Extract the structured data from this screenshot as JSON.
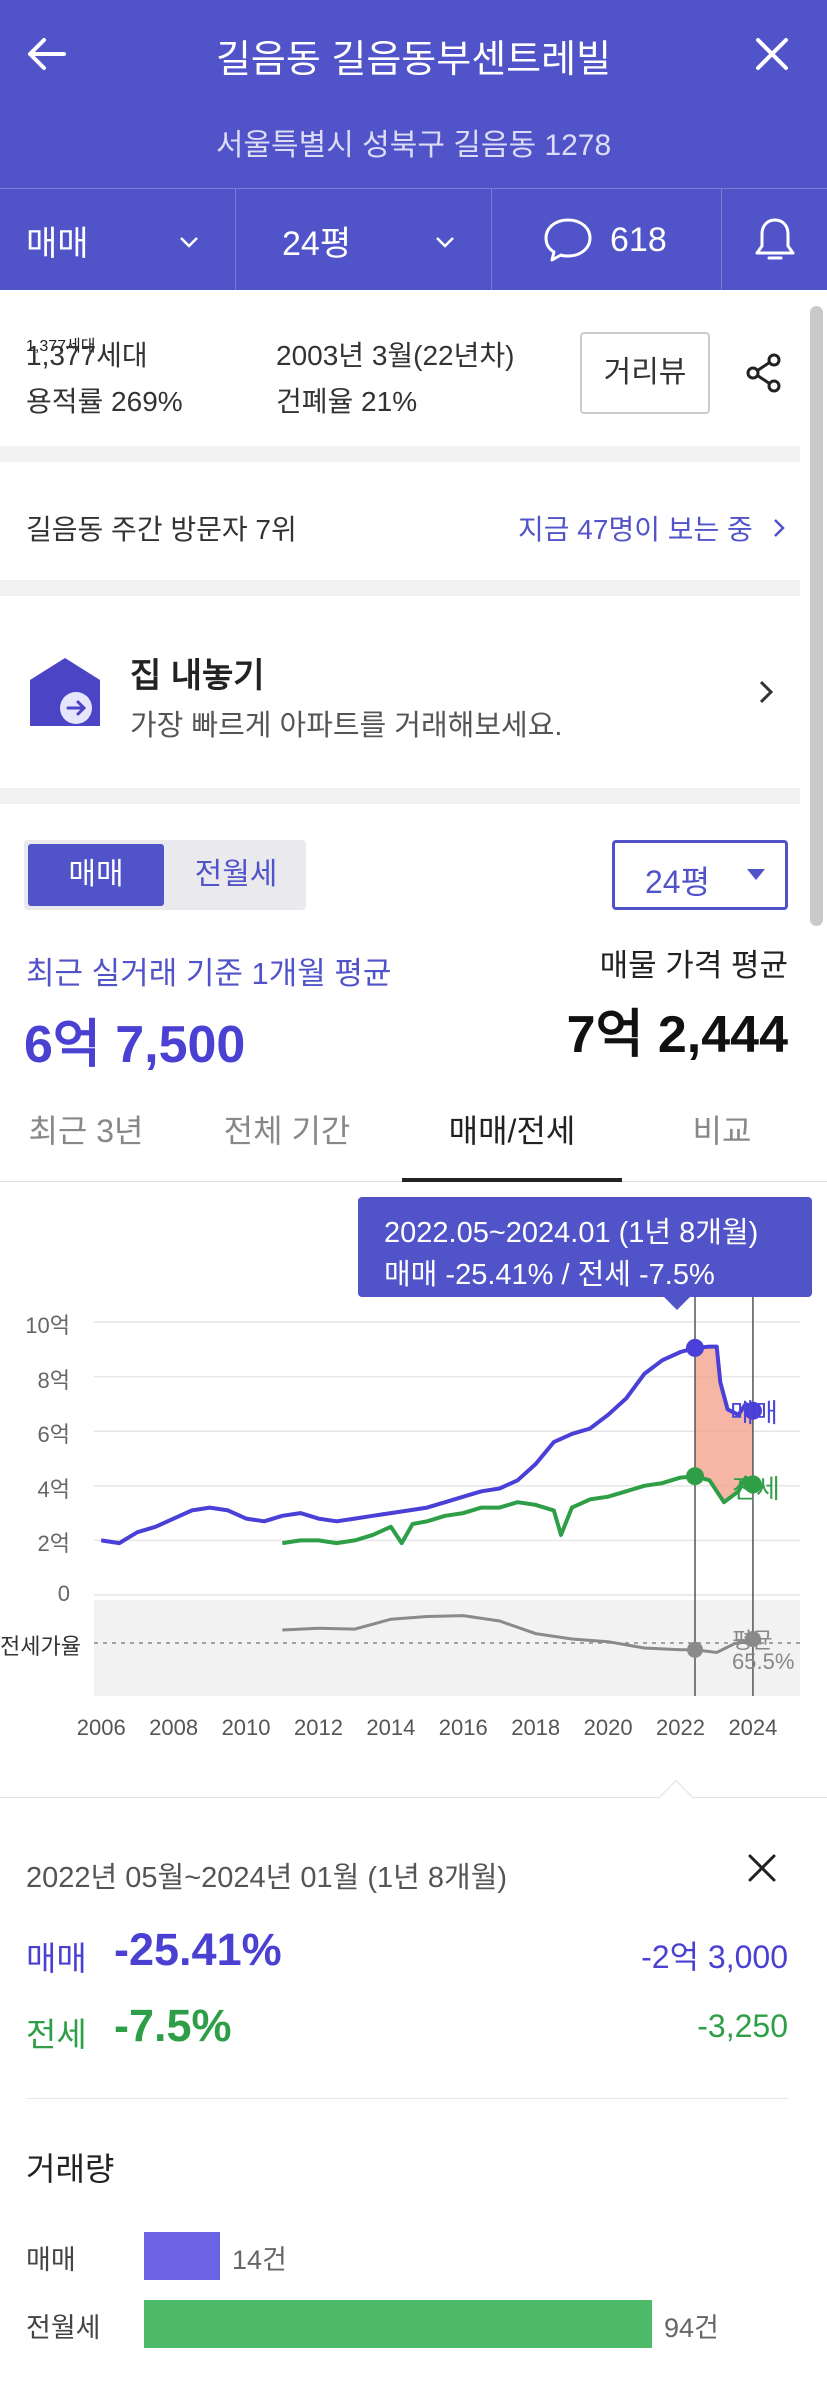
{
  "header": {
    "title": "길음동 길음동부센트레빌",
    "address": "서울특별시 성북구 길음동 1278",
    "trade_type": "매매",
    "size": "24평",
    "comments": "618"
  },
  "info": {
    "households": "1,377세대",
    "floor_area_ratio": "용적률 269%",
    "built": "2003년 3월(22년차)",
    "coverage_ratio": "건폐율 21%",
    "street_view_label": "거리뷰"
  },
  "visitors": {
    "rank_text": "길음동 주간 방문자 7위",
    "now_viewing": "지금 47명이 보는 중"
  },
  "listing": {
    "title": "집 내놓기",
    "subtitle": "가장 빠르게 아파트를 거래해보세요."
  },
  "price": {
    "toggle": [
      "매매",
      "전월세"
    ],
    "size_select": "24평",
    "recent_label": "최근 실거래 기준 1개월 평균",
    "recent_value": "6억 7,500",
    "listing_label": "매물 가격 평균",
    "listing_value": "7억 2,444"
  },
  "chart_tabs": [
    "최근 3년",
    "전체 기간",
    "매매/전세",
    "비교"
  ],
  "tooltip": {
    "line1": "2022.05~2024.01 (1년 8개월)",
    "line2": "매매 -25.41%  /  전세 -7.5%"
  },
  "chart_data": {
    "type": "line",
    "y_ticks": [
      "10억",
      "8억",
      "6억",
      "4억",
      "2억",
      "0"
    ],
    "ylim": [
      0,
      10
    ],
    "x_ticks": [
      "2006",
      "2008",
      "2010",
      "2012",
      "2014",
      "2016",
      "2018",
      "2020",
      "2022",
      "2024"
    ],
    "ratio_label": "전세가율",
    "ratio_avg_label": "평균",
    "ratio_avg_value": "65.5%",
    "series": [
      {
        "name": "매매",
        "color": "#4a3fd6",
        "points": [
          [
            2006.0,
            2.0
          ],
          [
            2006.5,
            1.9
          ],
          [
            2007.0,
            2.3
          ],
          [
            2007.5,
            2.5
          ],
          [
            2008.0,
            2.8
          ],
          [
            2008.5,
            3.1
          ],
          [
            2009.0,
            3.2
          ],
          [
            2009.5,
            3.1
          ],
          [
            2010.0,
            2.8
          ],
          [
            2010.5,
            2.7
          ],
          [
            2011.0,
            2.9
          ],
          [
            2011.5,
            3.0
          ],
          [
            2012.0,
            2.8
          ],
          [
            2012.5,
            2.7
          ],
          [
            2013.0,
            2.8
          ],
          [
            2013.5,
            2.9
          ],
          [
            2014.0,
            3.0
          ],
          [
            2014.5,
            3.1
          ],
          [
            2015.0,
            3.2
          ],
          [
            2015.5,
            3.4
          ],
          [
            2016.0,
            3.6
          ],
          [
            2016.5,
            3.8
          ],
          [
            2017.0,
            3.9
          ],
          [
            2017.5,
            4.2
          ],
          [
            2018.0,
            4.8
          ],
          [
            2018.5,
            5.6
          ],
          [
            2019.0,
            5.9
          ],
          [
            2019.5,
            6.1
          ],
          [
            2020.0,
            6.6
          ],
          [
            2020.5,
            7.2
          ],
          [
            2021.0,
            8.1
          ],
          [
            2021.5,
            8.6
          ],
          [
            2022.0,
            8.9
          ],
          [
            2022.4,
            9.05
          ],
          [
            2022.8,
            9.1
          ],
          [
            2023.0,
            9.1
          ],
          [
            2023.1,
            7.8
          ],
          [
            2023.3,
            6.8
          ],
          [
            2023.6,
            6.6
          ],
          [
            2023.8,
            7.0
          ],
          [
            2024.0,
            6.75
          ]
        ]
      },
      {
        "name": "전세",
        "color": "#2e9e47",
        "points": [
          [
            2011.0,
            1.9
          ],
          [
            2011.5,
            2.0
          ],
          [
            2012.0,
            2.0
          ],
          [
            2012.5,
            1.9
          ],
          [
            2013.0,
            2.0
          ],
          [
            2013.5,
            2.2
          ],
          [
            2014.0,
            2.5
          ],
          [
            2014.3,
            1.9
          ],
          [
            2014.6,
            2.6
          ],
          [
            2015.0,
            2.7
          ],
          [
            2015.5,
            2.9
          ],
          [
            2016.0,
            3.0
          ],
          [
            2016.5,
            3.2
          ],
          [
            2017.0,
            3.2
          ],
          [
            2017.5,
            3.4
          ],
          [
            2018.0,
            3.3
          ],
          [
            2018.5,
            3.1
          ],
          [
            2018.7,
            2.2
          ],
          [
            2019.0,
            3.2
          ],
          [
            2019.5,
            3.5
          ],
          [
            2020.0,
            3.6
          ],
          [
            2020.5,
            3.8
          ],
          [
            2021.0,
            4.0
          ],
          [
            2021.5,
            4.1
          ],
          [
            2022.0,
            4.3
          ],
          [
            2022.4,
            4.35
          ],
          [
            2022.8,
            4.2
          ],
          [
            2023.2,
            3.4
          ],
          [
            2023.6,
            3.8
          ],
          [
            2023.8,
            4.3
          ],
          [
            2024.0,
            4.05
          ]
        ]
      }
    ],
    "ratio_series": [
      [
        2011.0,
        0.7
      ],
      [
        2012.0,
        0.72
      ],
      [
        2013.0,
        0.71
      ],
      [
        2014.0,
        0.82
      ],
      [
        2015.0,
        0.85
      ],
      [
        2016.0,
        0.86
      ],
      [
        2017.0,
        0.8
      ],
      [
        2018.0,
        0.66
      ],
      [
        2019.0,
        0.6
      ],
      [
        2020.0,
        0.57
      ],
      [
        2021.0,
        0.5
      ],
      [
        2022.0,
        0.48
      ],
      [
        2022.4,
        0.48
      ],
      [
        2023.0,
        0.45
      ],
      [
        2023.5,
        0.55
      ],
      [
        2024.0,
        0.6
      ]
    ],
    "highlight_range": [
      2022.4,
      2024.0
    ]
  },
  "period_summary": {
    "period": "2022년 05월~2024년 01월 (1년 8개월)",
    "buy_label": "매매",
    "buy_pct": "-25.41%",
    "buy_amount": "-2억 3,000",
    "rent_label": "전세",
    "rent_pct": "-7.5%",
    "rent_amount": "-3,250"
  },
  "volume": {
    "title": "거래량",
    "rows": [
      {
        "label": "매매",
        "count": 14,
        "count_text": "14건",
        "color": "#6b63e3"
      },
      {
        "label": "전월세",
        "count": 94,
        "count_text": "94건",
        "color": "#4dbb6a"
      }
    ]
  }
}
